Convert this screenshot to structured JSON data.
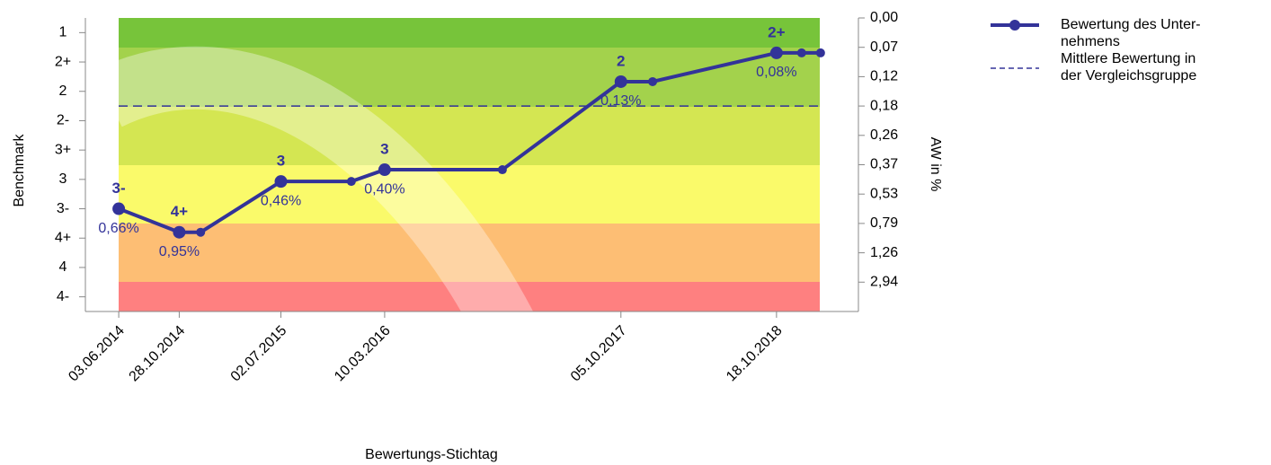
{
  "chart_data": {
    "type": "line",
    "x_label": "Bewertungs-Stichtag",
    "y_label": "Benchmark",
    "y2_label": "AW in %",
    "x": [
      "03.06.2014",
      "28.10.2014",
      "19.12.2014",
      "02.07.2015",
      "20.12.2015",
      "10.03.2016",
      "21.12.2016",
      "05.10.2017",
      "21.12.2017",
      "18.10.2018",
      "18.12.2018",
      "02.02.2019"
    ],
    "xlim": [
      "14.03.2014",
      "05.05.2019"
    ],
    "xticks": [
      "03.06.2014",
      "28.10.2014",
      "02.07.2015",
      "10.03.2016",
      "05.10.2017",
      "18.10.2018"
    ],
    "ylim": [
      0.5,
      10.5
    ],
    "y_reversed": true,
    "yticks": [
      1,
      {
        "value": 2,
        "label": "2+"
      },
      {
        "value": 3,
        "label": "2"
      },
      {
        "value": 4,
        "label": "2-"
      },
      {
        "value": 5,
        "label": "3+"
      },
      {
        "value": 6,
        "label": "3"
      },
      {
        "value": 7,
        "label": "3-"
      },
      {
        "value": 8,
        "label": "4+"
      },
      {
        "value": 9,
        "label": "4"
      },
      {
        "value": 10,
        "label": "4-"
      }
    ],
    "y2ticks": [
      {
        "value": 0,
        "label": "0,00"
      },
      {
        "value": 0.07,
        "label": "0,07"
      },
      {
        "value": 0.12,
        "label": "0,12"
      },
      {
        "value": 0.18,
        "label": "0,18"
      },
      {
        "value": 0.26,
        "label": "0,26"
      },
      {
        "value": 0.37,
        "label": "0,37"
      },
      {
        "value": 0.53,
        "label": "0,53"
      },
      {
        "value": 0.79,
        "label": "0,79"
      },
      {
        "value": 1.26,
        "label": "1,26"
      },
      {
        "value": 2.94,
        "label": "2,94"
      }
    ],
    "series": [
      {
        "name": "Bewertung des Unter-\nnehmens",
        "color": "#333399",
        "values": [
          7.0,
          7.8,
          7.8,
          6.07,
          6.07,
          5.67,
          5.67,
          2.67,
          2.67,
          1.69,
          1.69,
          1.69
        ],
        "ratings": [
          "3-",
          "4+",
          null,
          "3",
          null,
          "3",
          null,
          "2",
          null,
          "2+",
          null,
          null
        ],
        "aw_labels": [
          "0,66%",
          "0,95%",
          null,
          "0,46%",
          null,
          "0,40%",
          null,
          "0,13%",
          null,
          "0,08%",
          null,
          null
        ]
      },
      {
        "name": "Mittlere Bewertung in\nder Vergleichsgruppe",
        "color": "#333399",
        "dashed": true,
        "value": 3.5
      }
    ]
  }
}
